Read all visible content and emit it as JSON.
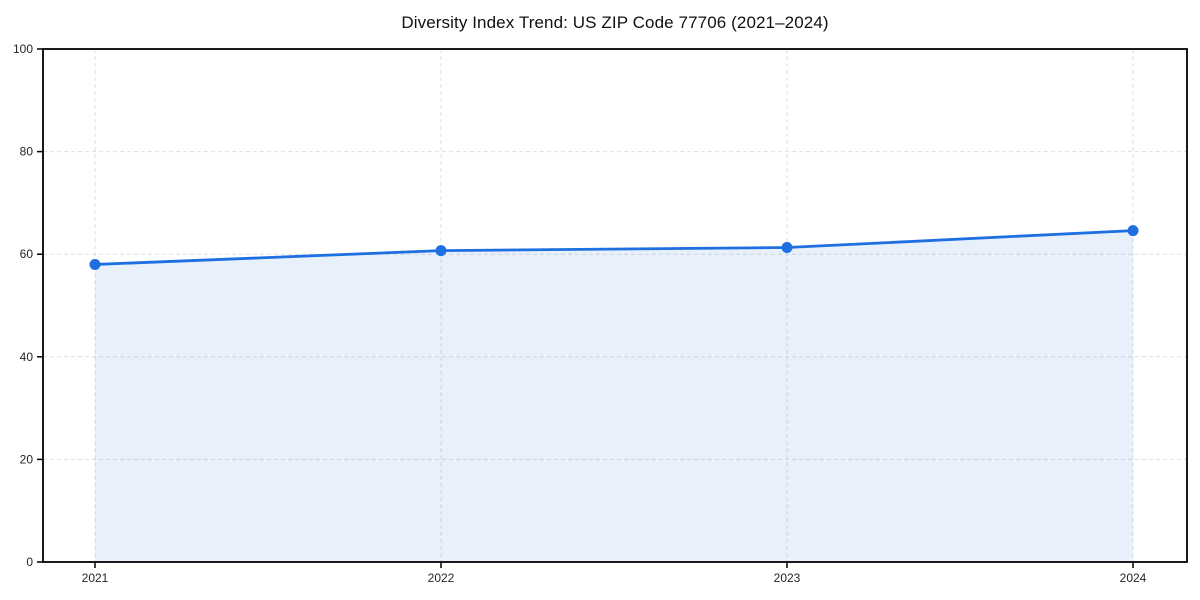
{
  "chart_data": {
    "type": "line",
    "title": "Diversity Index Trend: US ZIP Code 77706 (2021–2024)",
    "x": [
      "2021",
      "2022",
      "2023",
      "2024"
    ],
    "series": [
      {
        "name": "Diversity Index",
        "values": [
          58.0,
          60.7,
          61.3,
          64.6
        ]
      }
    ],
    "xlabel": "",
    "ylabel": "",
    "ylim": [
      0,
      100
    ],
    "yticks": [
      0,
      20,
      40,
      60,
      80,
      100
    ],
    "grid": true,
    "legend_position": "none",
    "marker": "circle",
    "area_fill": true,
    "line_color": "#1e6fe0",
    "marker_color": "#1e6fe0",
    "fill_opacity": 0.1,
    "grid_color": "#dfdfdf",
    "axis_color": "#000000",
    "tick_label_color": "#262626",
    "title_color": "#111111"
  }
}
